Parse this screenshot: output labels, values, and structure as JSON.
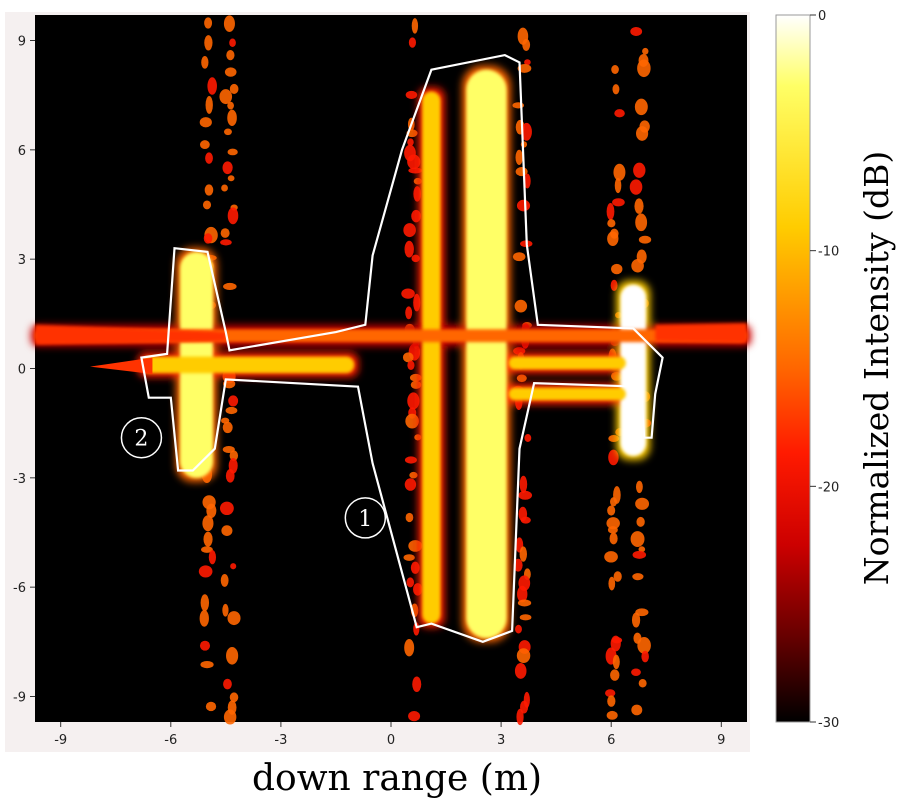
{
  "chart_data": {
    "type": "heatmap",
    "title": "",
    "xlabel": "down range (m)",
    "ylabel": "",
    "xlim": [
      -9.7,
      9.7
    ],
    "ylim": [
      -9.7,
      9.7
    ],
    "x_ticks": [
      -9,
      -6,
      -3,
      0,
      3,
      6,
      9
    ],
    "y_ticks": [
      -9,
      -6,
      -3,
      0,
      3,
      6,
      9
    ],
    "colorbar": {
      "label": "Normalized Intensity (dB)",
      "range": [
        -30,
        0
      ],
      "ticks": [
        0,
        -10,
        -20,
        -30
      ],
      "colors": [
        "#ffffff",
        "#ffff66",
        "#ffcc00",
        "#ff6600",
        "#ff1a00",
        "#cc0000",
        "#660000",
        "#000000"
      ]
    },
    "annotations": [
      {
        "label": "1",
        "x": -0.7,
        "y": -4.1
      },
      {
        "label": "2",
        "x": -6.8,
        "y": -1.9
      }
    ],
    "outline_color": "#ffffff",
    "background_color": "#000000",
    "scatter_strips": [
      {
        "x": -5.0,
        "y_from": -9.6,
        "y_to": 9.5,
        "intensity": -14
      },
      {
        "x": -4.4,
        "y_from": -9.6,
        "y_to": 9.5,
        "intensity": -14
      },
      {
        "x": 0.6,
        "y_from": -9.6,
        "y_to": 9.5,
        "intensity": -16
      },
      {
        "x": 3.6,
        "y_from": -9.6,
        "y_to": 9.5,
        "intensity": -16
      },
      {
        "x": 6.1,
        "y_from": -9.6,
        "y_to": 9.5,
        "intensity": -14
      },
      {
        "x": 6.8,
        "y_from": -9.6,
        "y_to": 9.5,
        "intensity": -14
      }
    ],
    "bright_features": [
      {
        "name": "main-wing-bar",
        "x": 2.6,
        "y_from": -7.4,
        "y_to": 8.2,
        "width_m": 1.1,
        "intensity": -3
      },
      {
        "name": "wing-root-bar",
        "x": 1.1,
        "y_from": -7.0,
        "y_to": 7.6,
        "width_m": 0.5,
        "intensity": -9
      },
      {
        "name": "tail-bar",
        "x": -5.3,
        "y_from": -3.0,
        "y_to": 3.2,
        "width_m": 0.9,
        "intensity": -4
      },
      {
        "name": "nose-bar",
        "x": 6.6,
        "y_from": -2.4,
        "y_to": 2.3,
        "width_m": 0.7,
        "intensity": -2
      },
      {
        "name": "fuselage-line",
        "y": 0.9,
        "x_from": -9.7,
        "x_to": 9.7,
        "height_m": 0.35,
        "intensity": -12
      },
      {
        "name": "boom-upper",
        "y": 0.15,
        "x_from": 3.2,
        "x_to": 6.4,
        "height_m": 0.35,
        "intensity": -7
      },
      {
        "name": "boom-lower",
        "y": -0.7,
        "x_from": 3.2,
        "x_to": 6.4,
        "height_m": 0.35,
        "intensity": -7
      },
      {
        "name": "tail-boom",
        "y": 0.1,
        "x_from": -6.8,
        "x_to": -1.0,
        "height_m": 0.45,
        "intensity": -8
      }
    ],
    "outline_polygon": [
      [
        3.1,
        8.6
      ],
      [
        3.5,
        8.4
      ],
      [
        3.7,
        3.4
      ],
      [
        4.0,
        1.2
      ],
      [
        6.6,
        1.1
      ],
      [
        7.4,
        0.3
      ],
      [
        7.2,
        -0.7
      ],
      [
        7.1,
        -1.9
      ],
      [
        6.9,
        -1.9
      ],
      [
        6.8,
        -0.5
      ],
      [
        3.9,
        -0.4
      ],
      [
        3.5,
        -2.2
      ],
      [
        3.3,
        -7.2
      ],
      [
        2.5,
        -7.5
      ],
      [
        1.1,
        -7.0
      ],
      [
        0.7,
        -7.1
      ],
      [
        -0.5,
        -2.6
      ],
      [
        -0.9,
        -0.5
      ],
      [
        -4.5,
        -0.3
      ],
      [
        -4.8,
        -2.2
      ],
      [
        -5.4,
        -2.8
      ],
      [
        -5.8,
        -2.8
      ],
      [
        -6.0,
        -0.8
      ],
      [
        -6.6,
        -0.8
      ],
      [
        -6.8,
        0.3
      ],
      [
        -6.1,
        0.4
      ],
      [
        -5.9,
        3.3
      ],
      [
        -5.0,
        3.2
      ],
      [
        -4.5,
        1.0
      ],
      [
        -4.4,
        0.5
      ],
      [
        -1.5,
        1.0
      ],
      [
        -0.7,
        1.2
      ],
      [
        -0.5,
        3.1
      ],
      [
        0.3,
        6.0
      ],
      [
        1.1,
        8.2
      ]
    ]
  }
}
